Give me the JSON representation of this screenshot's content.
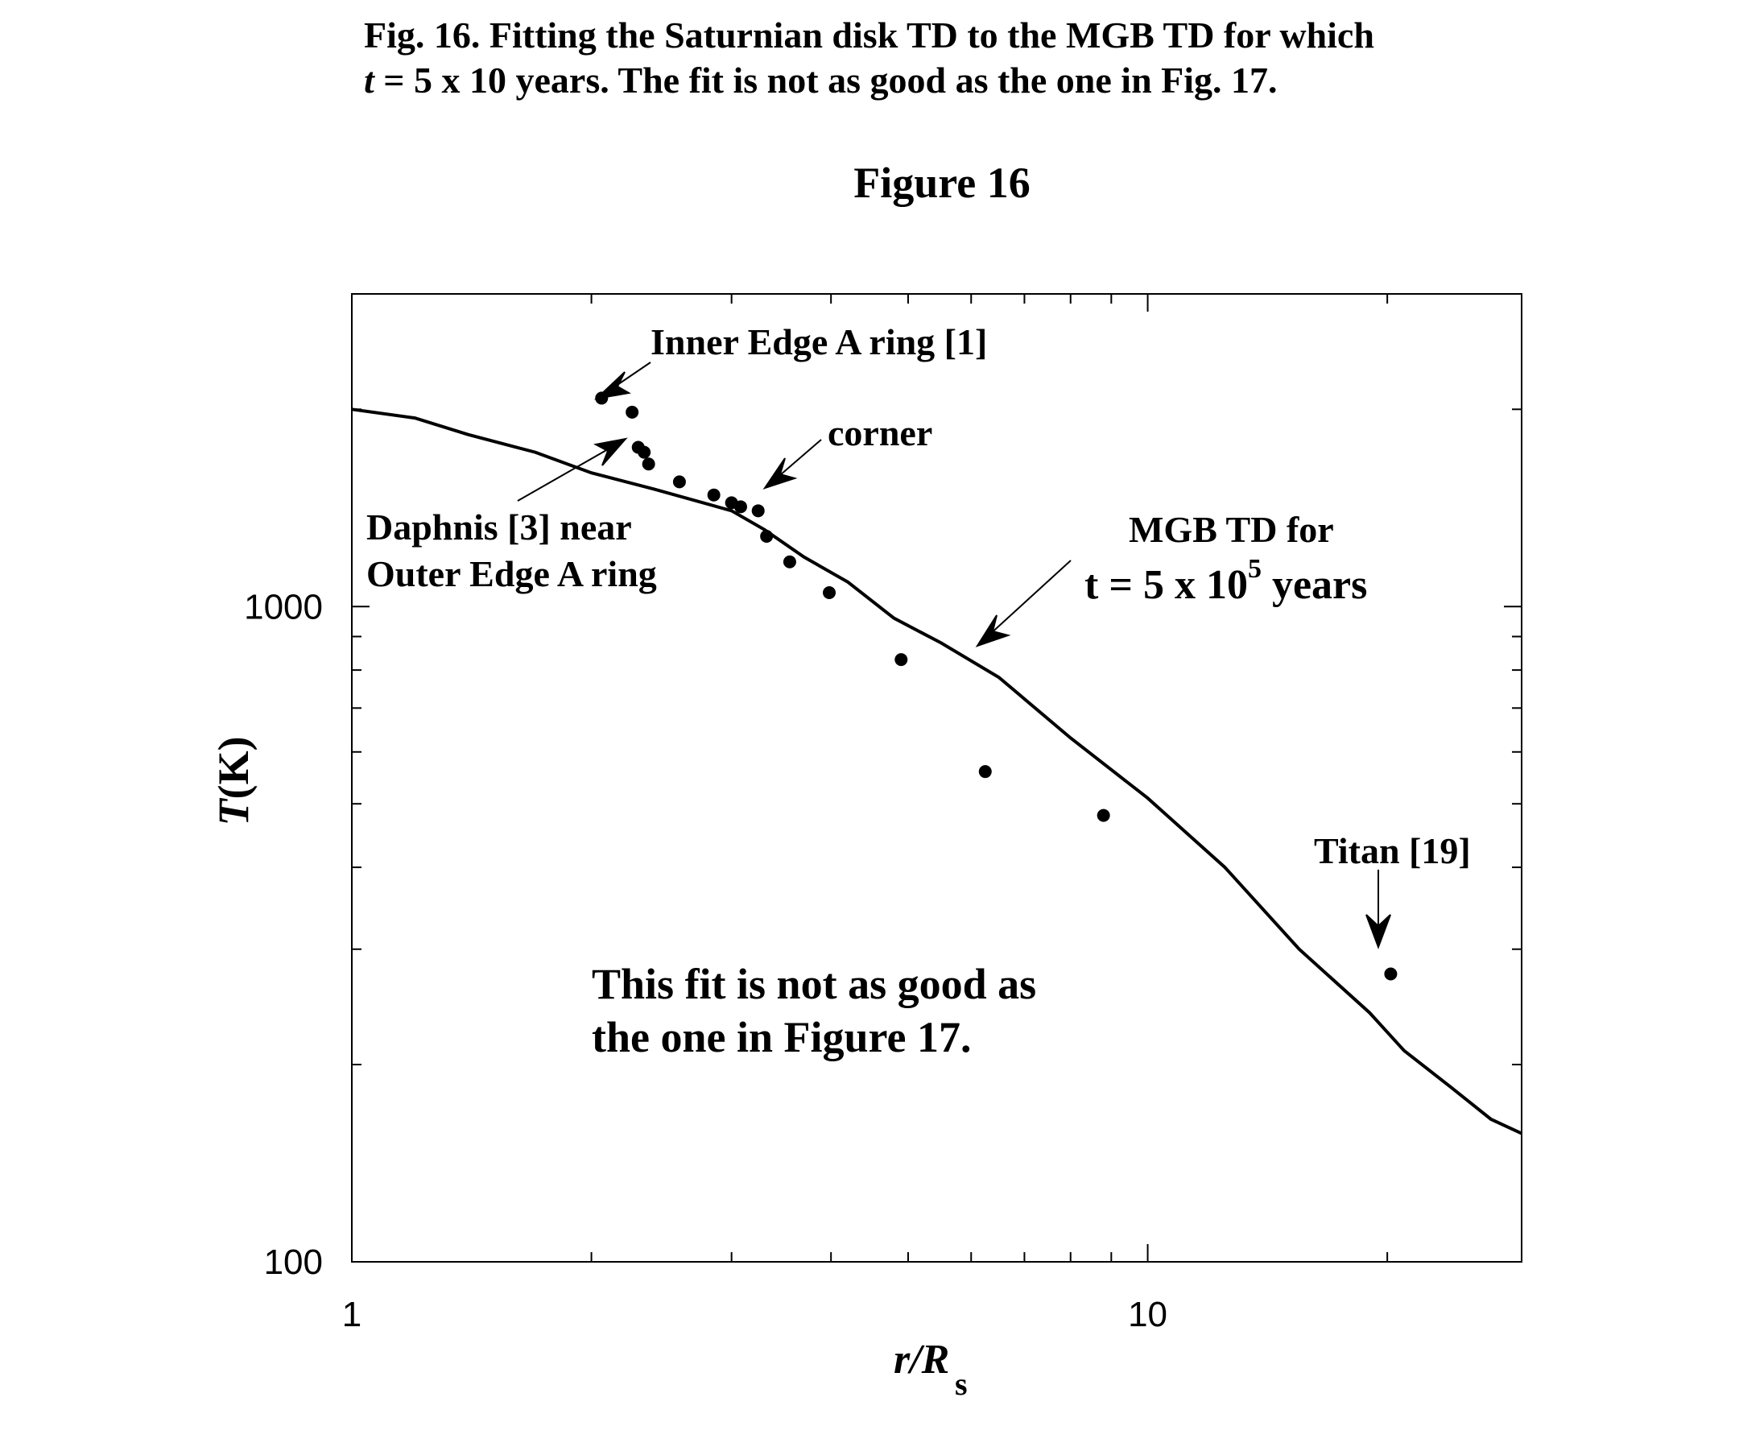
{
  "caption": {
    "line1": "Fig. 16. Fitting the Saturnian disk TD to the MGB TD for which",
    "line2_italic": "t",
    "line2_rest": " = 5 x 10  years. The fit is not as good as the one in Fig. 17."
  },
  "figure_title": "Figure 16",
  "chart_data": {
    "type": "scatter",
    "title": "",
    "xlabel": "r/R",
    "xlabel_sub": "s",
    "ylabel": "T(K)",
    "xlim": [
      1,
      29.5
    ],
    "ylim": [
      100,
      3000
    ],
    "x_scale": "log",
    "y_scale": "log",
    "grid": false,
    "x_ticks": [
      {
        "value": 1,
        "label": "1"
      },
      {
        "value": 10,
        "label": "10"
      }
    ],
    "y_ticks": [
      {
        "value": 100,
        "label": "100"
      },
      {
        "value": 1000,
        "label": "1000"
      }
    ],
    "series": [
      {
        "kind": "line",
        "x": [
          1.0,
          1.2,
          1.4,
          1.7,
          2.0,
          2.4,
          3.0,
          3.3,
          3.7,
          4.2,
          4.8,
          5.5,
          6.5,
          8.0,
          10.0,
          12.5,
          15.5,
          19.0,
          21.0,
          24.0,
          27.0,
          29.5
        ],
        "y": [
          2000,
          1940,
          1830,
          1720,
          1600,
          1510,
          1400,
          1310,
          1190,
          1090,
          960,
          880,
          780,
          630,
          510,
          400,
          300,
          240,
          210,
          185,
          165,
          157
        ]
      },
      {
        "kind": "points",
        "x": [
          2.06,
          2.25,
          2.29,
          2.33,
          2.36,
          2.58,
          2.85,
          3.0,
          3.08,
          3.24,
          3.32,
          3.55,
          3.98,
          4.9,
          6.25,
          8.8,
          20.2
        ],
        "y": [
          2080,
          1980,
          1750,
          1720,
          1650,
          1550,
          1480,
          1440,
          1420,
          1400,
          1280,
          1170,
          1050,
          830,
          560,
          480,
          275
        ]
      }
    ],
    "annotations": {
      "inner_edge": "Inner Edge A ring [1]",
      "corner": "corner",
      "daphnis_line1": "Daphnis [3] near",
      "daphnis_line2": "Outer Edge A ring",
      "mgb_line1": "MGB TD for",
      "mgb_line2_prefix": "t = 5 x 10",
      "mgb_line2_sup": "5",
      "mgb_line2_suffix": " years",
      "titan": "Titan [19]",
      "fit_note_line1": "This fit is not as good as",
      "fit_note_line2": "the one in Figure 17."
    }
  }
}
